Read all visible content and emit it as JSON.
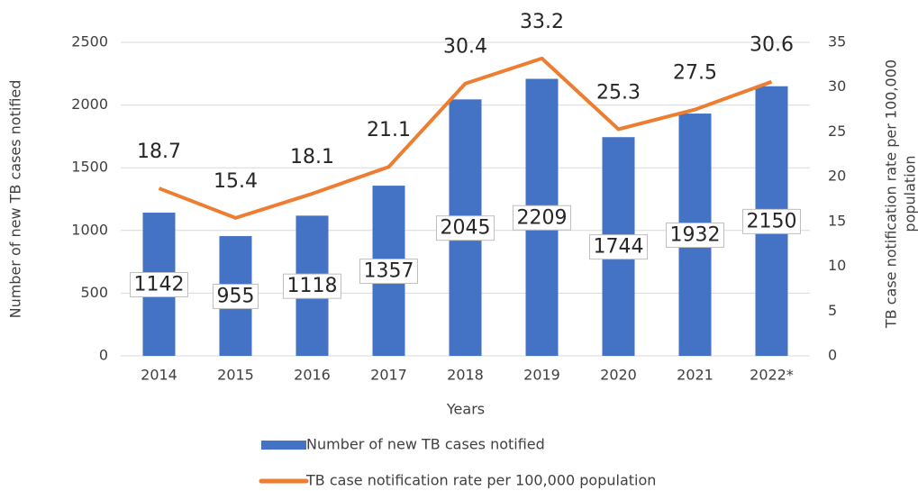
{
  "chart_data": {
    "type": "bar_line",
    "x_label": "Years",
    "y_label": "Number of new TB cases notified",
    "y2_label": [
      "TB case notification rate per 100,000",
      "population"
    ],
    "categories": [
      "2014",
      "2015",
      "2016",
      "2017",
      "2018",
      "2019",
      "2020",
      "2021",
      "2022*"
    ],
    "series": [
      {
        "name": "Number of new TB cases notified",
        "type": "bar",
        "color": "#4472c4",
        "values": [
          1142,
          955,
          1118,
          1357,
          2045,
          2209,
          1744,
          1932,
          2150
        ]
      },
      {
        "name": "TB case notification rate per 100,000 population",
        "type": "line",
        "axis": "y2",
        "color": "#ed7d31",
        "values": [
          18.7,
          15.4,
          18.1,
          21.1,
          30.4,
          33.2,
          25.3,
          27.5,
          30.6
        ]
      }
    ],
    "ylim": [
      0,
      2500
    ],
    "yticks": [
      0,
      500,
      1000,
      1500,
      2000,
      2500
    ],
    "y2lim": [
      0,
      35
    ],
    "y2ticks": [
      0,
      5,
      10,
      15,
      20,
      25,
      30,
      35
    ],
    "grid": true,
    "legend": "bottom"
  }
}
